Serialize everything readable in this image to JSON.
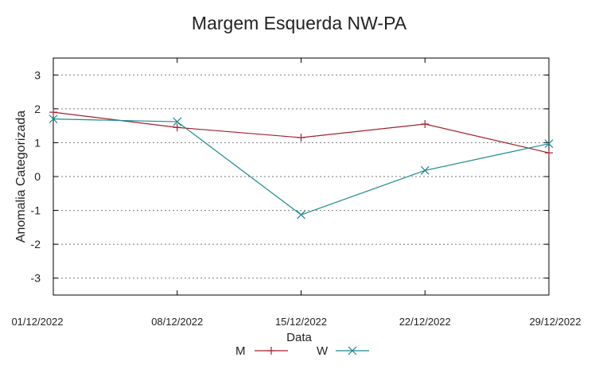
{
  "chart_data": {
    "type": "line",
    "title": "Margem Esquerda NW-PA",
    "xlabel": "Data",
    "ylabel": "Anomalia Categorizada",
    "categories": [
      "01/12/2022",
      "08/12/2022",
      "15/12/2022",
      "22/12/2022",
      "29/12/2022"
    ],
    "ylim": [
      -3.5,
      3.5
    ],
    "yticks": [
      "3",
      "2",
      "1",
      "0",
      "-1",
      "-2",
      "-3"
    ],
    "ytick_values": [
      3,
      2,
      1,
      0,
      -1,
      -2,
      -3
    ],
    "grid": true,
    "legend_position": "bottom-center",
    "series": [
      {
        "name": "M",
        "color": "#a0222e",
        "marker": "plus",
        "values": [
          1.9,
          1.45,
          1.15,
          1.55,
          0.7
        ]
      },
      {
        "name": "W",
        "color": "#1b8a8f",
        "marker": "x",
        "values": [
          1.7,
          1.62,
          -1.13,
          0.18,
          0.97
        ]
      }
    ]
  }
}
